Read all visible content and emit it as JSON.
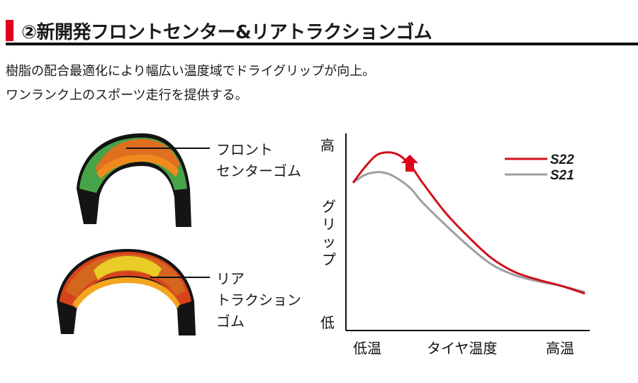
{
  "header": {
    "title": "②新開発フロントセンター&リアトラクションゴム",
    "accent_color": "#e0001a"
  },
  "description": {
    "line1": "樹脂の配合最適化により幅広い温度域でドライグリップが向上。",
    "line2": "ワンランク上のスポーツ走行を提供する。"
  },
  "tires": {
    "front": {
      "icon": "front-tire-cross-section",
      "label_line1": "フロント",
      "label_line2": "センターゴム"
    },
    "rear": {
      "icon": "rear-tire-cross-section",
      "label_line1": "リア",
      "label_line2": "トラクション",
      "label_line3": "ゴム"
    }
  },
  "chart_data": {
    "type": "line",
    "ylabel": "グリップ",
    "y_tick_high": "高",
    "y_tick_low": "低",
    "x_tick_left": "低温",
    "x_label": "タイヤ温度",
    "x_tick_right": "高温",
    "ylim": [
      0,
      100
    ],
    "x": [
      0,
      5,
      10,
      15,
      20,
      25,
      30,
      40,
      50,
      60,
      70,
      80,
      90,
      100
    ],
    "series": [
      {
        "name": "S22",
        "color": "#d0101b",
        "values": [
          74,
          84,
          92,
          94,
          92,
          85,
          74,
          54,
          38,
          24,
          15,
          10,
          6,
          1
        ]
      },
      {
        "name": "S21",
        "color": "#9e9e9e",
        "values": [
          74,
          79,
          81,
          80,
          76,
          70,
          61,
          46,
          32,
          20,
          13,
          9,
          6,
          2
        ]
      }
    ],
    "annotation": {
      "type": "arrow-up",
      "color": "#e0001a"
    },
    "legend_position": "top-right",
    "grid": false
  }
}
